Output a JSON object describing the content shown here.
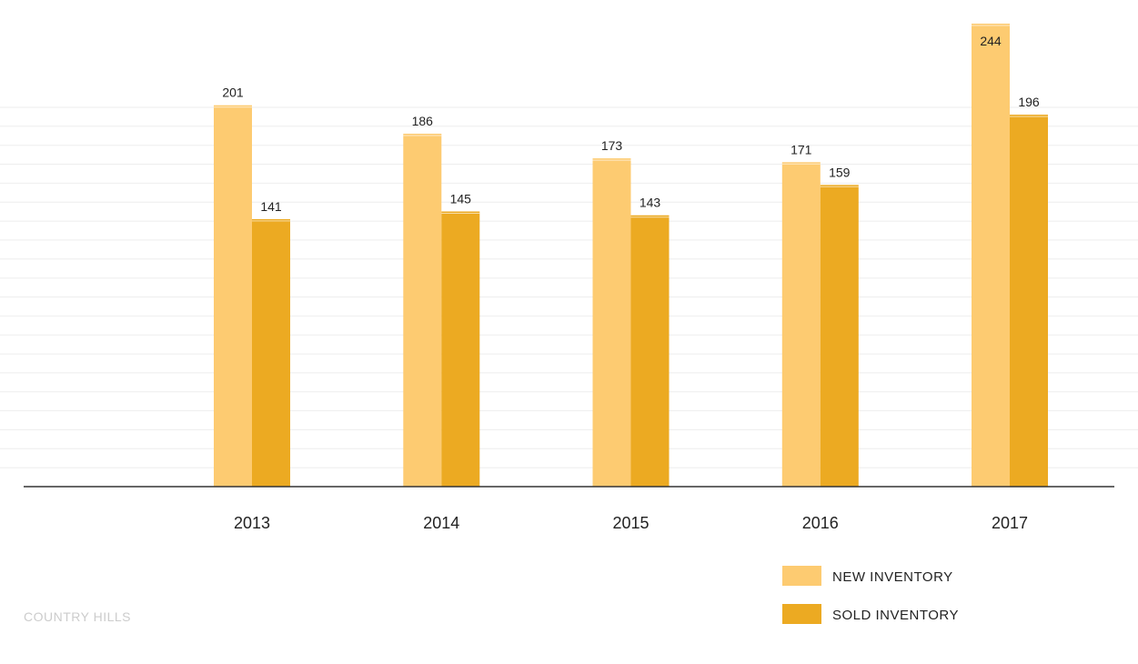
{
  "footer": {
    "label": "COUNTRY HILLS"
  },
  "colors": {
    "new": "#FDCB71",
    "sold": "#ECAA22",
    "axis": "#333333",
    "grid": "#eeeeee"
  },
  "chart_data": {
    "type": "bar",
    "categories": [
      "2013",
      "2014",
      "2015",
      "2016",
      "2017"
    ],
    "series": [
      {
        "name": "NEW INVENTORY",
        "values": [
          201,
          186,
          173,
          171,
          244
        ]
      },
      {
        "name": "SOLD INVENTORY",
        "values": [
          141,
          145,
          143,
          159,
          196
        ]
      }
    ],
    "ylim": [
      0,
      244
    ],
    "grid": true,
    "legend_position": "bottom-right"
  }
}
